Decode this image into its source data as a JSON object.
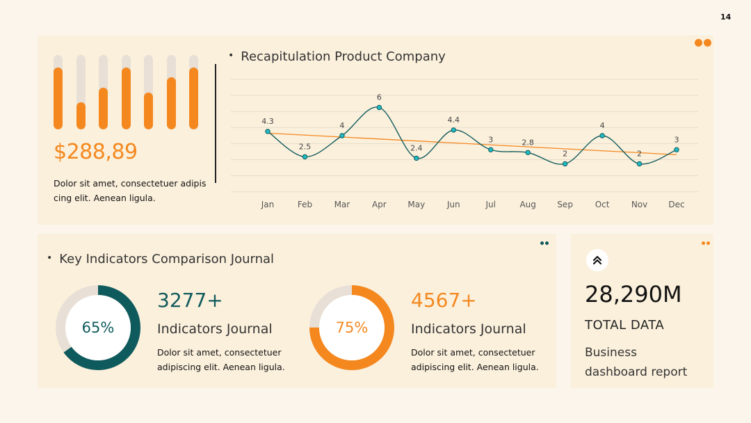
{
  "page_number": "14",
  "colors": {
    "orange": "#f4881f",
    "teal": "#0f5a5c",
    "teal_marker": "#1fbcc4",
    "track": "#e8e0d6"
  },
  "summary": {
    "bar_levels": [
      0.83,
      0.36,
      0.56,
      0.83,
      0.5,
      0.7,
      0.83
    ],
    "price": "$288,89",
    "description": "Dolor sit amet, consectetuer adipis cing elit. Aenean ligula."
  },
  "chart_data": {
    "type": "line",
    "title": "Recapitulation Product Company",
    "categories": [
      "Jan",
      "Feb",
      "Mar",
      "Apr",
      "May",
      "Jun",
      "Jul",
      "Aug",
      "Sep",
      "Oct",
      "Nov",
      "Dec"
    ],
    "series": [
      {
        "values": [
          4.3,
          2.5,
          4,
          6,
          2.4,
          4.4,
          3,
          2.8,
          2,
          4,
          2,
          3
        ]
      }
    ],
    "trendline": [
      4.18,
      2.65
    ],
    "ylim": [
      0,
      8
    ],
    "grid": true,
    "data_labels": [
      "4.3",
      "2.5",
      "4",
      "6",
      "2.4",
      "4.4",
      "3",
      "2.8",
      "2",
      "4",
      "2",
      "3"
    ]
  },
  "indicators": {
    "title": "Key Indicators Comparison Journal",
    "items": [
      {
        "percent_label": "65%",
        "percent": 0.65,
        "value": "3277+",
        "label": "Indicators Journal",
        "description": "Dolor sit amet, consectetuer adipiscing elit. Aenean ligula."
      },
      {
        "percent_label": "75%",
        "percent": 0.75,
        "value": "4567+",
        "label": "Indicators Journal",
        "description": "Dolor sit amet, consectetuer adipiscing elit. Aenean ligula."
      }
    ]
  },
  "total": {
    "icon": "double-chevron-up-icon",
    "value": "28,290M",
    "label": "TOTAL DATA",
    "description": "Business dashboard report"
  }
}
